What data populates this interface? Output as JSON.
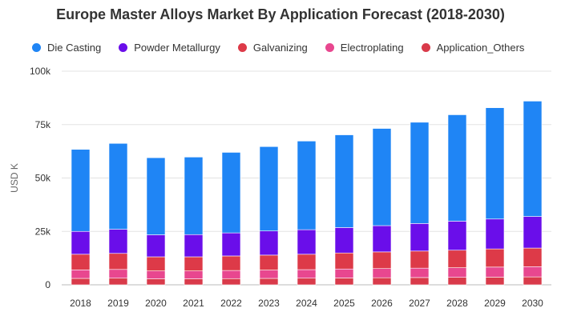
{
  "chart_data": {
    "type": "bar",
    "stacked": true,
    "title": "Europe Master Alloys Market By Application Forecast (2018-2030)",
    "xlabel": "",
    "ylabel": "USD K",
    "ylim": [
      0,
      100000
    ],
    "yticks": [
      0,
      25000,
      50000,
      75000,
      100000
    ],
    "ytick_labels": [
      "0",
      "25k",
      "50k",
      "75k",
      "100k"
    ],
    "grid": true,
    "legend_position": "top-left",
    "categories": [
      "2018",
      "2019",
      "2020",
      "2021",
      "2022",
      "2023",
      "2024",
      "2025",
      "2026",
      "2027",
      "2028",
      "2029",
      "2030"
    ],
    "series": [
      {
        "name": "Application_Others",
        "color": "#d93a4a",
        "values": [
          3000,
          3100,
          2800,
          2800,
          2900,
          3000,
          3100,
          3200,
          3300,
          3400,
          3500,
          3600,
          3700
        ]
      },
      {
        "name": "Electroplating",
        "color": "#e8478f",
        "values": [
          4000,
          4100,
          3700,
          3700,
          3800,
          3900,
          4000,
          4200,
          4300,
          4400,
          4500,
          4700,
          4800
        ]
      },
      {
        "name": "Galvanizing",
        "color": "#dd3a48",
        "values": [
          7300,
          7500,
          6600,
          6600,
          6800,
          7000,
          7200,
          7500,
          7800,
          8000,
          8200,
          8500,
          8700
        ]
      },
      {
        "name": "Powder Metallurgy",
        "color": "#6a0eea",
        "values": [
          10700,
          11300,
          10300,
          10400,
          10800,
          11300,
          11500,
          11900,
          12300,
          12900,
          13600,
          14000,
          14800
        ]
      },
      {
        "name": "Die Casting",
        "color": "#1f85f5",
        "values": [
          38400,
          40200,
          36100,
          36300,
          37700,
          39500,
          41500,
          43400,
          45500,
          47400,
          49800,
          52100,
          54000
        ]
      }
    ]
  },
  "legend": [
    {
      "label": "Die Casting",
      "color": "#1f85f5"
    },
    {
      "label": "Powder Metallurgy",
      "color": "#6a0eea"
    },
    {
      "label": "Galvanizing",
      "color": "#dd3a48"
    },
    {
      "label": "Electroplating",
      "color": "#e8478f"
    },
    {
      "label": "Application_Others",
      "color": "#d93a4a"
    }
  ]
}
